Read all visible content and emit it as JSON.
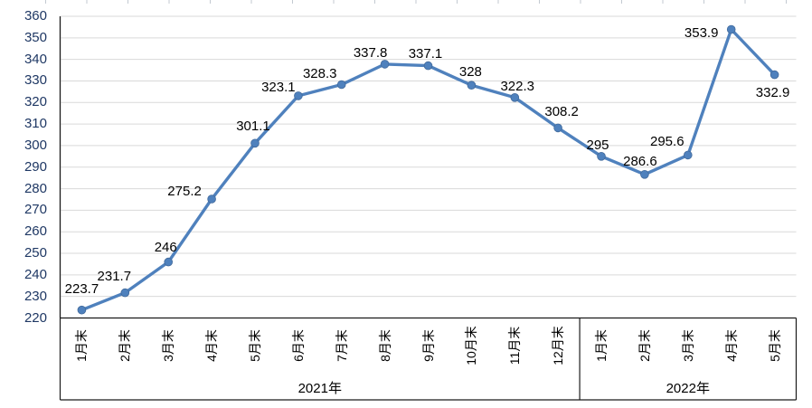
{
  "chart_data": {
    "type": "line",
    "title": "",
    "legend": "none",
    "grid": "horizontal",
    "categories": [
      "1月末",
      "2月末",
      "3月末",
      "4月末",
      "5月末",
      "6月末",
      "7月末",
      "8月末",
      "9月末",
      "10月末",
      "11月末",
      "12月末",
      "1月末",
      "2月末",
      "3月末",
      "4月末",
      "5月末"
    ],
    "category_groups": [
      {
        "label": "2021年",
        "span": 12
      },
      {
        "label": "2022年",
        "span": 5
      }
    ],
    "series": [
      {
        "name": "",
        "values": [
          223.7,
          231.7,
          246,
          275.2,
          301.1,
          323.1,
          328.3,
          337.8,
          337.1,
          328,
          322.3,
          308.2,
          295,
          286.6,
          295.6,
          353.9,
          332.9
        ]
      }
    ],
    "point_labels": [
      "223.7",
      "231.7",
      "246",
      "275.2",
      "301.1",
      "323.1",
      "328.3",
      "337.8",
      "337.1",
      "328",
      "322.3",
      "308.2",
      "295",
      "286.6",
      "295.6",
      "353.9",
      "332.9"
    ],
    "ylim": [
      220,
      360
    ],
    "ytick_step": 10,
    "xlabel": "",
    "ylabel": "",
    "colors": {
      "line": "#4F81BD",
      "marker_fill": "#4F81BD",
      "marker_edge": "#41699A",
      "gridline": "#D9D9D9",
      "axis_line": "#1A1A1A",
      "y_tick_label": "#1F3864",
      "x_tick_label": "#000000",
      "data_label": "#000000",
      "top_cell_tick": "#C3CAD1"
    }
  }
}
